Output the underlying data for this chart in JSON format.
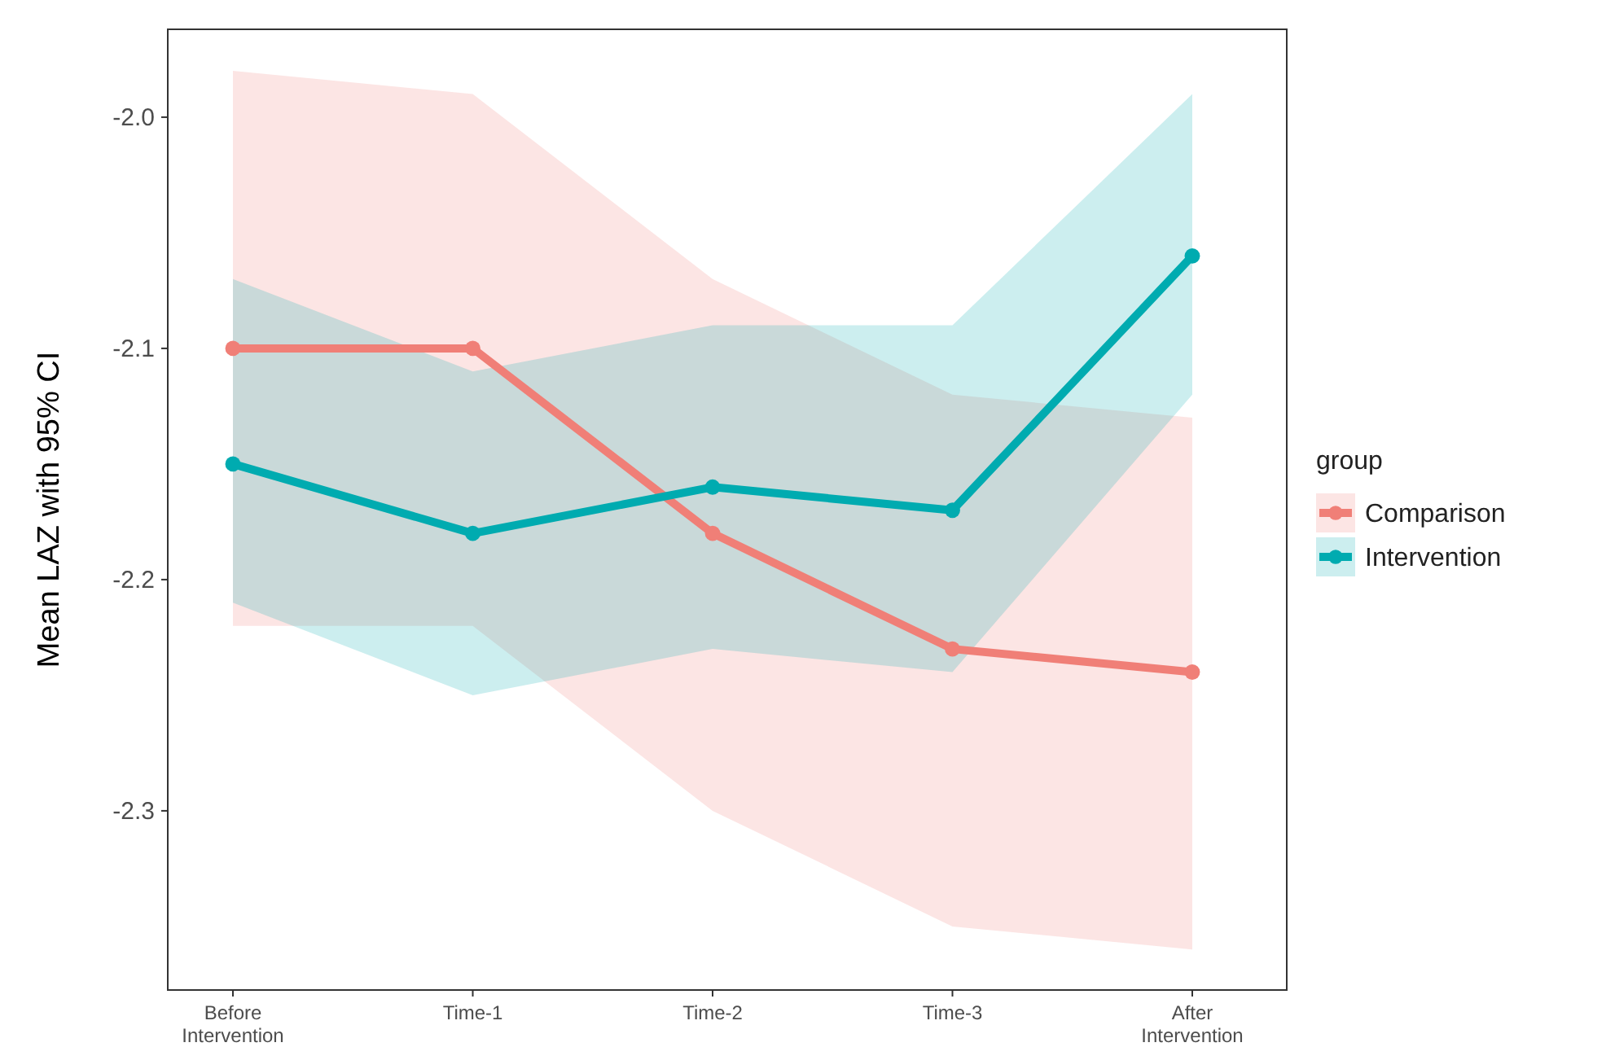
{
  "chart_data": {
    "type": "line",
    "ylabel": "Mean LAZ with 95% CI",
    "legend_title": "group",
    "legend": "right",
    "marker": "circle",
    "grid": false,
    "categories": [
      "Before\nIntervention",
      "Time-1",
      "Time-2",
      "Time-3",
      "After\nIntervention"
    ],
    "ylim": [
      -2.3775,
      -1.962
    ],
    "yticks": [
      -2.3,
      -2.2,
      -2.1,
      {
        "value": -2.0,
        "label": "-2.0"
      }
    ],
    "series": [
      {
        "name": "Comparison",
        "color": "#f07f77",
        "values": [
          -2.1,
          -2.1,
          -2.18,
          -2.23,
          -2.24
        ],
        "lower": [
          -2.22,
          -2.22,
          -2.3,
          -2.35,
          -2.36
        ],
        "upper": [
          -1.98,
          -1.99,
          -2.07,
          -2.12,
          -2.13
        ]
      },
      {
        "name": "Intervention",
        "color": "#00abb0",
        "values": [
          -2.15,
          -2.18,
          -2.16,
          -2.17,
          -2.06
        ],
        "lower": [
          -2.21,
          -2.25,
          -2.23,
          -2.24,
          -2.12
        ],
        "upper": [
          -2.07,
          -2.11,
          -2.09,
          -2.09,
          -1.99
        ]
      }
    ]
  }
}
